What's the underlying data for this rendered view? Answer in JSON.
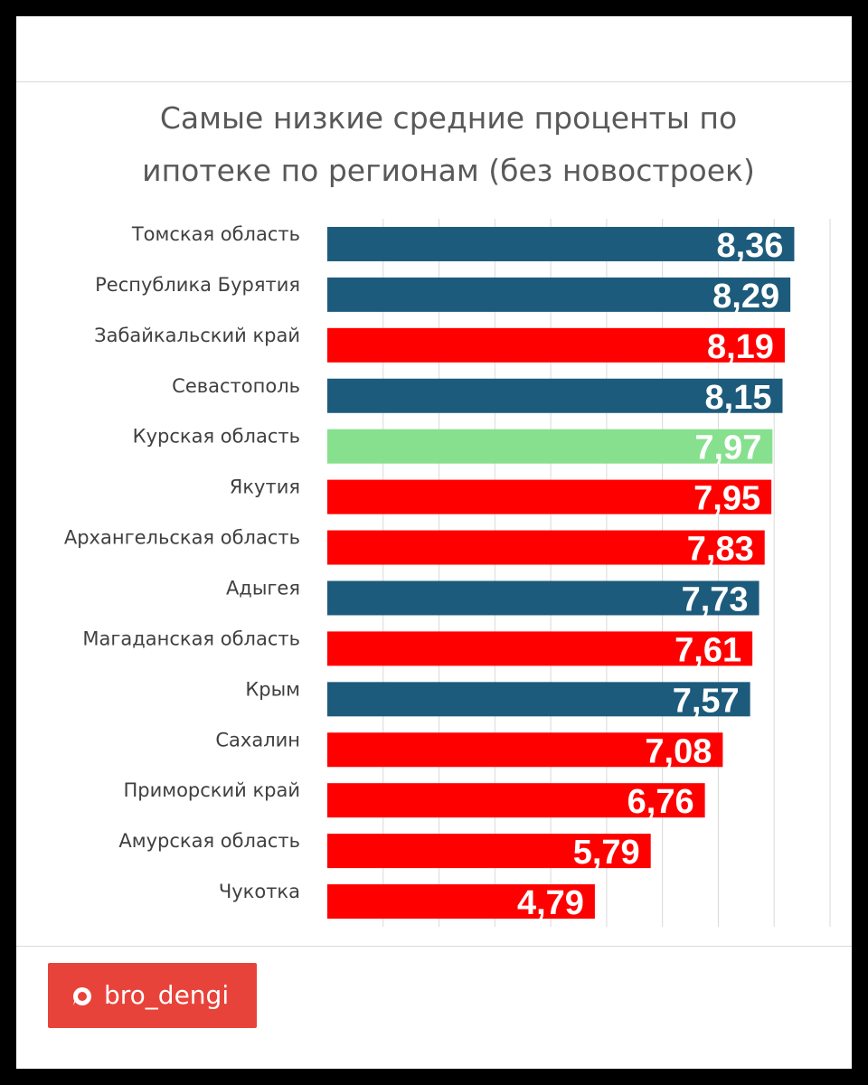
{
  "colors": {
    "blue": "#1d5b7c",
    "red": "#ff0000",
    "green": "#86e08e"
  },
  "chart_data": {
    "type": "bar",
    "orientation": "horizontal",
    "title": "Самые низкие средние проценты по ипотеке по регионам (без новостроек)",
    "title_lines": [
      "Самые низкие средние проценты по",
      "ипотеке по регионам (без новостроек)"
    ],
    "categories": [
      "Томская область",
      "Республика Бурятия",
      "Забайкальский край",
      "Севастополь",
      "Курская область",
      "Якутия",
      "Архангельская область",
      "Адыгея",
      "Магаданская область",
      "Крым",
      "Сахалин",
      "Приморский край",
      "Амурская область",
      "Чукотка"
    ],
    "values": [
      8.36,
      8.29,
      8.19,
      8.15,
      7.97,
      7.95,
      7.83,
      7.73,
      7.61,
      7.57,
      7.08,
      6.76,
      5.79,
      4.79
    ],
    "value_labels": [
      "8,36",
      "8,29",
      "8,19",
      "8,15",
      "7,97",
      "7,95",
      "7,83",
      "7,73",
      "7,61",
      "7,57",
      "7,08",
      "6,76",
      "5,79",
      "4,79"
    ],
    "bar_colors": [
      "blue",
      "blue",
      "red",
      "blue",
      "green",
      "red",
      "red",
      "blue",
      "red",
      "blue",
      "red",
      "red",
      "red",
      "red"
    ],
    "xlim": [
      0,
      9
    ],
    "grid": true,
    "legend": false
  },
  "badge": {
    "icon": "chat-bubble-icon",
    "text": "bro_dengi"
  }
}
